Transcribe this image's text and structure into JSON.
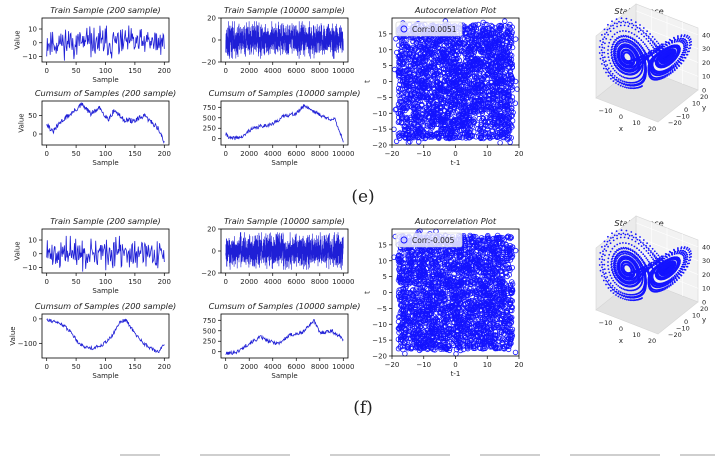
{
  "labels": {
    "e": "(e)",
    "f": "(f)"
  },
  "colors": {
    "line": "#1f1fd6",
    "scatter": "#1414ff",
    "axis": "#000000",
    "text": "#222222"
  },
  "chart_data": [
    {
      "id": "e1",
      "type": "line",
      "title": "Train Sample (200 sample)",
      "xlabel": "Sample",
      "ylabel": "Value",
      "xlim": [
        -8,
        208
      ],
      "ylim": [
        -14,
        18
      ],
      "xticks": [
        0,
        50,
        100,
        150,
        200
      ],
      "yticks": [
        -10,
        0,
        10
      ],
      "generator": {
        "kind": "noise",
        "n": 200,
        "amp": 13,
        "seed": 11
      }
    },
    {
      "id": "e2",
      "type": "line",
      "title": "Train Sample (10000 sample)",
      "xlabel": "",
      "ylabel": "",
      "xlim": [
        -400,
        10400
      ],
      "ylim": [
        -20,
        20
      ],
      "xticks": [
        0,
        2000,
        4000,
        6000,
        8000,
        10000
      ],
      "yticks": [
        -20,
        0,
        20
      ],
      "generator": {
        "kind": "noise",
        "n": 1500,
        "amp": 17,
        "seed": 21
      }
    },
    {
      "id": "e3",
      "type": "line",
      "title": "Cumsum of Samples (200 sample)",
      "xlabel": "Sample",
      "ylabel": "Value",
      "xlim": [
        -8,
        208
      ],
      "ylim": [
        -30,
        90
      ],
      "xticks": [
        0,
        50,
        100,
        150,
        200
      ],
      "yticks": [
        0,
        50
      ],
      "keypoints": [
        [
          0,
          30
        ],
        [
          10,
          5
        ],
        [
          25,
          35
        ],
        [
          45,
          60
        ],
        [
          60,
          80
        ],
        [
          75,
          55
        ],
        [
          90,
          70
        ],
        [
          105,
          40
        ],
        [
          115,
          65
        ],
        [
          130,
          40
        ],
        [
          150,
          35
        ],
        [
          165,
          50
        ],
        [
          180,
          30
        ],
        [
          190,
          15
        ],
        [
          200,
          -25
        ]
      ],
      "jitter": 7,
      "seed": 31
    },
    {
      "id": "e4",
      "type": "line",
      "title": "Cumsum of Samples (10000 sample)",
      "xlabel": "Sample",
      "ylabel": "",
      "xlim": [
        -400,
        10400
      ],
      "ylim": [
        -150,
        900
      ],
      "xticks": [
        0,
        2000,
        4000,
        6000,
        8000,
        10000
      ],
      "yticks": [
        0,
        250,
        500,
        750
      ],
      "keypoints": [
        [
          0,
          100
        ],
        [
          500,
          0
        ],
        [
          1500,
          50
        ],
        [
          2000,
          200
        ],
        [
          3000,
          300
        ],
        [
          4000,
          350
        ],
        [
          5000,
          550
        ],
        [
          6000,
          600
        ],
        [
          6700,
          800
        ],
        [
          7500,
          650
        ],
        [
          8500,
          500
        ],
        [
          9300,
          450
        ],
        [
          10000,
          -50
        ]
      ],
      "jitter": 45,
      "seed": 41
    },
    {
      "id": "e5",
      "type": "scatter",
      "title": "Autocorrelation Plot",
      "xlabel": "t-1",
      "ylabel": "t",
      "xlim": [
        -20,
        20
      ],
      "ylim": [
        -20,
        20
      ],
      "xticks": [
        -20,
        -10,
        0,
        10,
        20
      ],
      "yticks": [
        -20,
        -15,
        -10,
        -5,
        0,
        5,
        10,
        15
      ],
      "legend": "Corr:0.0051",
      "legend_position": "top-left",
      "generator": {
        "kind": "scatter",
        "n": 2600,
        "range": 18,
        "seed": 51
      }
    },
    {
      "id": "e6",
      "type": "scatter",
      "title": "State Space",
      "xlabel": "x",
      "ylabel": "y",
      "zlabel": "",
      "xticks": [
        -20,
        -10,
        0,
        10,
        20
      ],
      "yticks": [
        -20,
        -10,
        0,
        10,
        20
      ],
      "zticks": [
        0,
        10,
        20,
        30,
        40
      ],
      "generator": {
        "kind": "lorenz",
        "n": 3000,
        "seed": 61
      }
    },
    {
      "id": "f1",
      "type": "line",
      "title": "Train Sample (200 sample)",
      "xlabel": "Sample",
      "ylabel": "Value",
      "xlim": [
        -8,
        208
      ],
      "ylim": [
        -14,
        18
      ],
      "xticks": [
        0,
        50,
        100,
        150,
        200
      ],
      "yticks": [
        -10,
        0,
        10
      ],
      "generator": {
        "kind": "noise",
        "n": 200,
        "amp": 13,
        "seed": 71
      }
    },
    {
      "id": "f2",
      "type": "line",
      "title": "Train Sample (10000 sample)",
      "xlabel": "",
      "ylabel": "",
      "xlim": [
        -400,
        10400
      ],
      "ylim": [
        -20,
        20
      ],
      "xticks": [
        0,
        2000,
        4000,
        6000,
        8000,
        10000
      ],
      "yticks": [
        -20,
        0,
        20
      ],
      "generator": {
        "kind": "noise",
        "n": 1500,
        "amp": 17,
        "seed": 81
      }
    },
    {
      "id": "f3",
      "type": "line",
      "title": "Cumsum of Samples (200 sample)",
      "xlabel": "Sample",
      "ylabel": "Value",
      "xlim": [
        -8,
        208
      ],
      "ylim": [
        -160,
        20
      ],
      "xticks": [
        0,
        50,
        100,
        150,
        200
      ],
      "yticks": [
        -100,
        0
      ],
      "keypoints": [
        [
          0,
          0
        ],
        [
          10,
          -10
        ],
        [
          25,
          -20
        ],
        [
          40,
          -50
        ],
        [
          55,
          -100
        ],
        [
          65,
          -115
        ],
        [
          80,
          -120
        ],
        [
          95,
          -105
        ],
        [
          110,
          -75
        ],
        [
          125,
          -10
        ],
        [
          135,
          -5
        ],
        [
          150,
          -60
        ],
        [
          165,
          -100
        ],
        [
          180,
          -125
        ],
        [
          190,
          -135
        ],
        [
          200,
          -100
        ]
      ],
      "jitter": 7,
      "seed": 91
    },
    {
      "id": "f4",
      "type": "line",
      "title": "Cumsum of Samples (10000 sample)",
      "xlabel": "Sample",
      "ylabel": "",
      "xlim": [
        -400,
        10400
      ],
      "ylim": [
        -150,
        900
      ],
      "xticks": [
        0,
        2000,
        4000,
        6000,
        8000,
        10000
      ],
      "yticks": [
        0,
        250,
        500,
        750
      ],
      "keypoints": [
        [
          0,
          -50
        ],
        [
          1000,
          0
        ],
        [
          2000,
          200
        ],
        [
          3000,
          350
        ],
        [
          3600,
          250
        ],
        [
          4500,
          200
        ],
        [
          5500,
          400
        ],
        [
          6500,
          450
        ],
        [
          7500,
          750
        ],
        [
          8000,
          450
        ],
        [
          9000,
          500
        ],
        [
          10000,
          300
        ]
      ],
      "jitter": 45,
      "seed": 101
    },
    {
      "id": "f5",
      "type": "scatter",
      "title": "Autocorrelation Plot",
      "xlabel": "t-1",
      "ylabel": "t",
      "xlim": [
        -20,
        20
      ],
      "ylim": [
        -20,
        20
      ],
      "xticks": [
        -20,
        -10,
        0,
        10,
        20
      ],
      "yticks": [
        -20,
        -15,
        -10,
        -5,
        0,
        5,
        10,
        15
      ],
      "legend": "Corr:-0.005",
      "legend_position": "top-left",
      "generator": {
        "kind": "scatter",
        "n": 2600,
        "range": 18,
        "seed": 111
      }
    },
    {
      "id": "f6",
      "type": "scatter",
      "title": "State Space",
      "xlabel": "x",
      "ylabel": "y",
      "zlabel": "",
      "xticks": [
        -20,
        -10,
        0,
        10,
        20
      ],
      "yticks": [
        -20,
        -10,
        0,
        10,
        20
      ],
      "zticks": [
        0,
        10,
        20,
        30,
        40
      ],
      "generator": {
        "kind": "lorenz",
        "n": 3000,
        "seed": 121
      }
    }
  ]
}
